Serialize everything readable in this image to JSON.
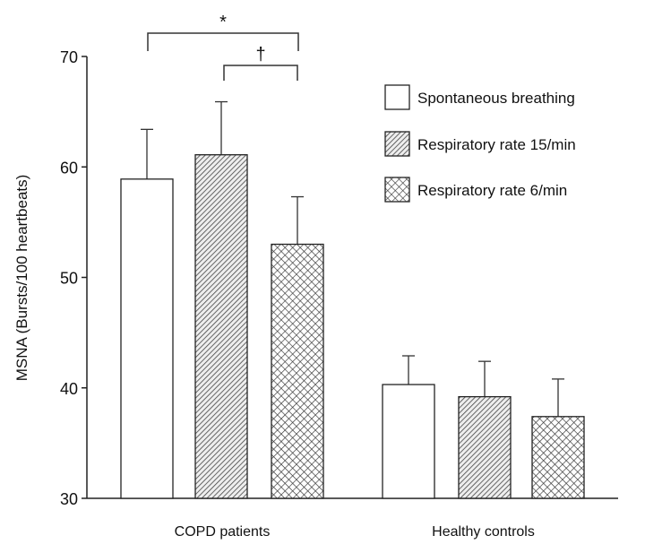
{
  "chart_data": {
    "type": "bar",
    "title": "",
    "xlabel": "",
    "ylabel": "MSNA (Bursts/100 heartbeats)",
    "ylim": [
      30,
      70
    ],
    "yticks": [
      "30",
      "40",
      "50",
      "60",
      "70"
    ],
    "categories": [
      "COPD patients",
      "Healthy controls"
    ],
    "series": [
      {
        "name": "Spontaneous breathing",
        "pattern": "none",
        "values": [
          58.9,
          40.3
        ],
        "error_upper": [
          63.4,
          42.9
        ]
      },
      {
        "name": "Respiratory rate 15/min",
        "pattern": "diagonal-hatch",
        "values": [
          61.1,
          39.2
        ],
        "error_upper": [
          65.9,
          42.4
        ]
      },
      {
        "name": "Respiratory rate 6/min",
        "pattern": "crosshatch",
        "values": [
          53.0,
          37.4
        ],
        "error_upper": [
          57.3,
          40.8
        ]
      }
    ],
    "annotations": [
      {
        "symbol": "*",
        "group": "COPD patients",
        "between": [
          "Spontaneous breathing",
          "Respiratory rate 6/min"
        ]
      },
      {
        "symbol": "†",
        "group": "COPD patients",
        "between": [
          "Respiratory rate 15/min",
          "Respiratory rate 6/min"
        ]
      }
    ],
    "legend_position": "top-right",
    "grid": false,
    "colors": {
      "bar_stroke": "#222222",
      "fill": "#ffffff"
    }
  }
}
